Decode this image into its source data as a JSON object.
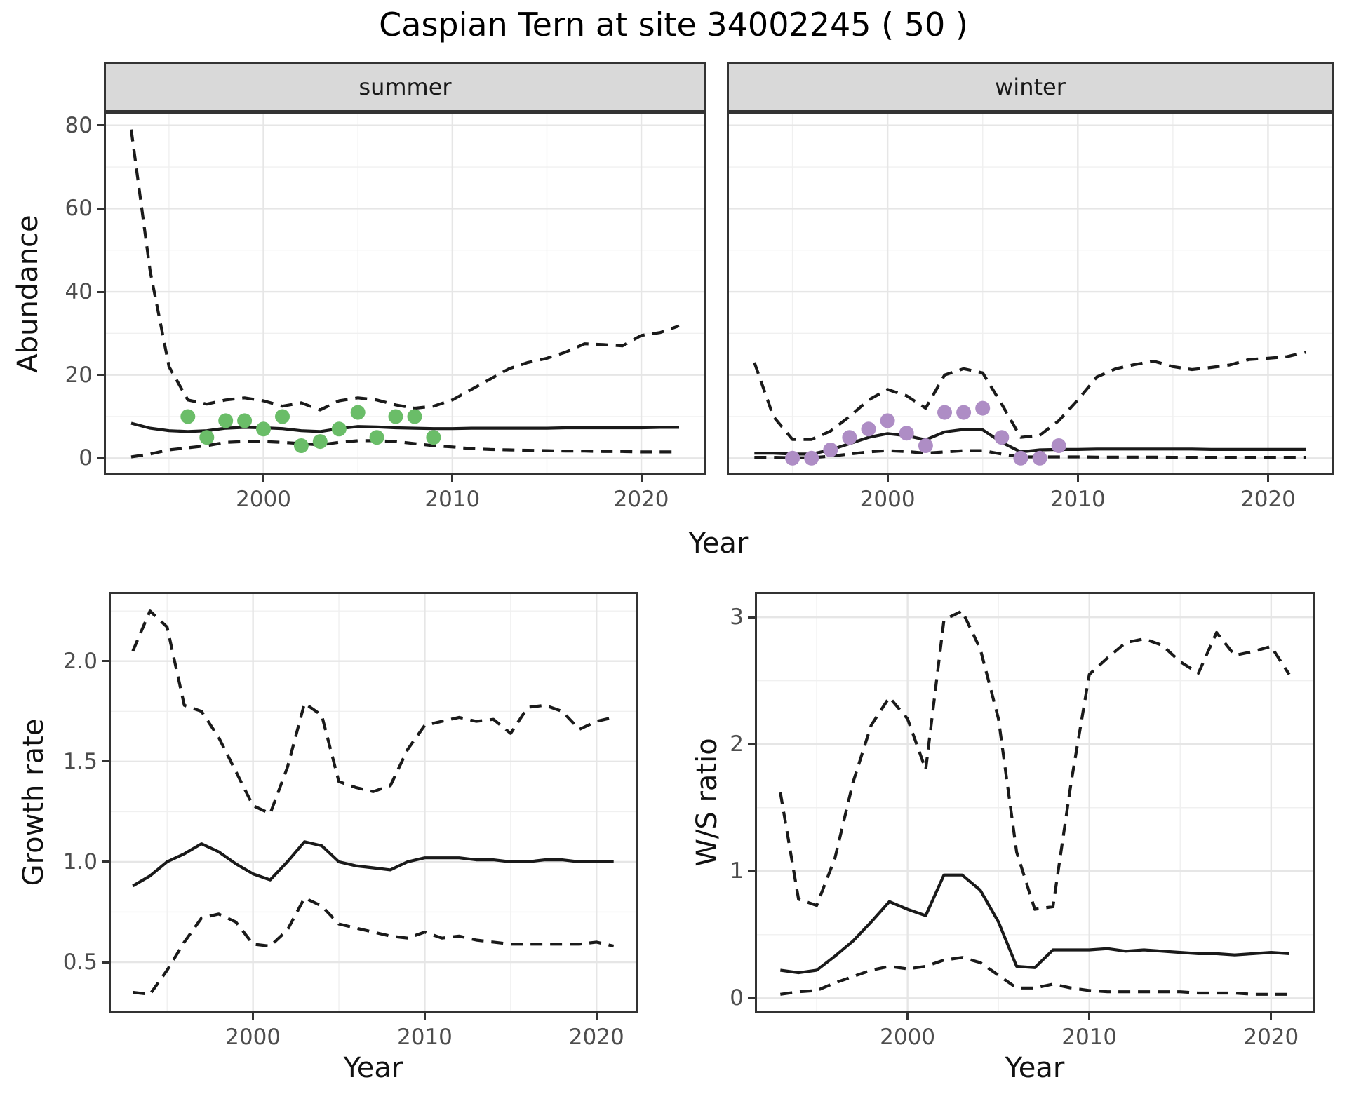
{
  "title": "Caspian Tern at site 34002245 ( 50 )",
  "labels": {
    "abundance": "Abundance",
    "year": "Year",
    "growth_rate": "Growth rate",
    "ws_ratio": "W/S ratio"
  },
  "colors": {
    "line": "#1a1a1a",
    "summer_points": "#6abd68",
    "winter_points": "#ae8dc5",
    "strip_fill": "#d9d9d9",
    "panel_border": "#333333",
    "grid_major": "#e6e6e6",
    "grid_minor": "#f0f0f0",
    "tick_text": "#4d4d4d"
  },
  "chart_data": [
    {
      "id": "summer",
      "type": "line",
      "facet_label": "summer",
      "xlabel": "Year",
      "ylabel": "Abundance",
      "xlim": [
        1991.55,
        2023.45
      ],
      "ylim": [
        -4.16,
        83.16
      ],
      "x_ticks": [
        2000,
        2010,
        2020
      ],
      "x_tick_labels": [
        "2000",
        "2010",
        "2020"
      ],
      "x_minor": [
        1995,
        2005,
        2015
      ],
      "y_ticks": [
        0,
        20,
        40,
        60,
        80
      ],
      "y_tick_labels": [
        "0",
        "20",
        "40",
        "60",
        "80"
      ],
      "y_minor": [
        10,
        30,
        50,
        70
      ],
      "show_y_labels": true,
      "x": [
        1993,
        1994,
        1995,
        1996,
        1997,
        1998,
        1999,
        2000,
        2001,
        2002,
        2003,
        2004,
        2005,
        2006,
        2007,
        2008,
        2009,
        2010,
        2011,
        2012,
        2013,
        2014,
        2015,
        2016,
        2017,
        2018,
        2019,
        2020,
        2021,
        2022
      ],
      "series": [
        {
          "name": "median fit",
          "role": "fit",
          "style": "solid",
          "values": [
            8.4,
            7.2,
            6.6,
            6.4,
            6.6,
            7.2,
            7.4,
            7.3,
            7.1,
            6.6,
            6.4,
            7.1,
            7.6,
            7.5,
            7.3,
            7.2,
            7.1,
            7.1,
            7.2,
            7.2,
            7.2,
            7.2,
            7.2,
            7.3,
            7.3,
            7.3,
            7.3,
            7.3,
            7.4,
            7.4
          ]
        },
        {
          "name": "upper CI",
          "role": "upper",
          "style": "dashed",
          "values": [
            79,
            45,
            22,
            14,
            13,
            14,
            14.5,
            13.8,
            12.5,
            13.3,
            11.6,
            13.8,
            14.5,
            14,
            12.8,
            12,
            12.5,
            14,
            16.5,
            19,
            21.5,
            23,
            24,
            25.5,
            27.5,
            27.3,
            27,
            29.5,
            30.2,
            31.8
          ]
        },
        {
          "name": "lower CI",
          "role": "lower",
          "style": "dashed",
          "values": [
            0.3,
            1,
            2,
            2.5,
            3,
            3.8,
            4,
            4,
            3.8,
            3.5,
            3.2,
            3.8,
            4.2,
            4.2,
            4,
            3.5,
            3,
            2.7,
            2.3,
            2.1,
            2,
            1.9,
            1.8,
            1.7,
            1.7,
            1.6,
            1.6,
            1.5,
            1.5,
            1.5
          ]
        }
      ],
      "points": {
        "name": "observed abundance (summer)",
        "color": "#6abd68",
        "x": [
          1996,
          1997,
          1998,
          1999,
          2000,
          2001,
          2002,
          2003,
          2004,
          2005,
          2006,
          2007,
          2008,
          2009
        ],
        "y": [
          10,
          5,
          9,
          9,
          7,
          10,
          3,
          4,
          7,
          11,
          5,
          10,
          10,
          5
        ]
      }
    },
    {
      "id": "winter",
      "type": "line",
      "facet_label": "winter",
      "xlabel": "Year",
      "ylabel": "Abundance",
      "xlim": [
        1991.55,
        2023.45
      ],
      "ylim": [
        -4.16,
        83.16
      ],
      "x_ticks": [
        2000,
        2010,
        2020
      ],
      "x_tick_labels": [
        "2000",
        "2010",
        "2020"
      ],
      "x_minor": [
        1995,
        2005,
        2015
      ],
      "y_ticks": [
        0,
        20,
        40,
        60,
        80
      ],
      "y_tick_labels": [
        "0",
        "20",
        "40",
        "60",
        "80"
      ],
      "y_minor": [
        10,
        30,
        50,
        70
      ],
      "show_y_labels": false,
      "x": [
        1993,
        1994,
        1995,
        1996,
        1997,
        1998,
        1999,
        2000,
        2001,
        2002,
        2003,
        2004,
        2005,
        2006,
        2007,
        2008,
        2009,
        2010,
        2011,
        2012,
        2013,
        2014,
        2015,
        2016,
        2017,
        2018,
        2019,
        2020,
        2021,
        2022
      ],
      "series": [
        {
          "name": "median fit",
          "role": "fit",
          "style": "solid",
          "values": [
            1.2,
            1.2,
            1.0,
            1.0,
            2.0,
            3.5,
            5.0,
            5.9,
            5.4,
            4.4,
            6.3,
            6.9,
            6.8,
            3.8,
            1.5,
            2.0,
            2.1,
            2.1,
            2.2,
            2.2,
            2.2,
            2.2,
            2.2,
            2.2,
            2.1,
            2.1,
            2.1,
            2.1,
            2.1,
            2.1
          ]
        },
        {
          "name": "upper CI",
          "role": "upper",
          "style": "dashed",
          "values": [
            23,
            10,
            4.5,
            4.5,
            6.5,
            10,
            14,
            16.5,
            15,
            12,
            20,
            21.5,
            20.5,
            13,
            5,
            5.5,
            9,
            14,
            19.5,
            21.5,
            22.5,
            23.3,
            22,
            21.3,
            21.8,
            22.4,
            23.7,
            24,
            24.4,
            25.5
          ]
        },
        {
          "name": "lower CI",
          "role": "lower",
          "style": "dashed",
          "values": [
            0.2,
            0.2,
            0.1,
            0.1,
            0.5,
            1.0,
            1.5,
            1.8,
            1.6,
            1.2,
            1.5,
            1.8,
            1.8,
            1.0,
            0.3,
            0.3,
            0.3,
            0.3,
            0.25,
            0.25,
            0.25,
            0.25,
            0.2,
            0.2,
            0.2,
            0.2,
            0.2,
            0.2,
            0.2,
            0.2
          ]
        }
      ],
      "points": {
        "name": "observed abundance (winter)",
        "color": "#ae8dc5",
        "x": [
          1995,
          1996,
          1997,
          1998,
          1999,
          2000,
          2001,
          2002,
          2003,
          2004,
          2005,
          2006,
          2007,
          2008,
          2009
        ],
        "y": [
          0,
          0,
          2,
          5,
          7,
          9,
          6,
          3,
          11,
          11,
          12,
          5,
          0,
          0,
          3
        ]
      }
    },
    {
      "id": "growth",
      "type": "line",
      "facet_label": "",
      "xlabel": "Year",
      "ylabel": "Growth rate",
      "xlim": [
        1991.6,
        2022.4
      ],
      "ylim": [
        0.245,
        2.345
      ],
      "x_ticks": [
        2000,
        2010,
        2020
      ],
      "x_tick_labels": [
        "2000",
        "2010",
        "2020"
      ],
      "x_minor": [
        1995,
        2005,
        2015
      ],
      "y_ticks": [
        0.5,
        1.0,
        1.5,
        2.0
      ],
      "y_tick_labels": [
        "0.5",
        "1.0",
        "1.5",
        "2.0"
      ],
      "y_minor": [
        0.25,
        0.75,
        1.25,
        1.75,
        2.25
      ],
      "show_y_labels": true,
      "x": [
        1993,
        1994,
        1995,
        1996,
        1997,
        1998,
        1999,
        2000,
        2001,
        2002,
        2003,
        2004,
        2005,
        2006,
        2007,
        2008,
        2009,
        2010,
        2011,
        2012,
        2013,
        2014,
        2015,
        2016,
        2017,
        2018,
        2019,
        2020,
        2021
      ],
      "series": [
        {
          "name": "median fit",
          "role": "fit",
          "style": "solid",
          "values": [
            0.88,
            0.93,
            1.0,
            1.04,
            1.09,
            1.05,
            0.99,
            0.94,
            0.91,
            1.0,
            1.1,
            1.08,
            1.0,
            0.98,
            0.97,
            0.96,
            1.0,
            1.02,
            1.02,
            1.02,
            1.01,
            1.01,
            1.0,
            1.0,
            1.01,
            1.01,
            1.0,
            1.0,
            1.0
          ]
        },
        {
          "name": "upper CI",
          "role": "upper",
          "style": "dashed",
          "values": [
            2.05,
            2.25,
            2.17,
            1.78,
            1.75,
            1.62,
            1.45,
            1.28,
            1.24,
            1.47,
            1.79,
            1.73,
            1.4,
            1.37,
            1.35,
            1.38,
            1.56,
            1.68,
            1.7,
            1.72,
            1.7,
            1.71,
            1.64,
            1.77,
            1.78,
            1.75,
            1.66,
            1.7,
            1.72
          ]
        },
        {
          "name": "lower CI",
          "role": "lower",
          "style": "dashed",
          "values": [
            0.35,
            0.34,
            0.46,
            0.6,
            0.72,
            0.74,
            0.7,
            0.59,
            0.58,
            0.66,
            0.82,
            0.78,
            0.69,
            0.67,
            0.65,
            0.63,
            0.62,
            0.65,
            0.62,
            0.63,
            0.61,
            0.6,
            0.59,
            0.59,
            0.59,
            0.59,
            0.59,
            0.6,
            0.58
          ]
        }
      ],
      "points": null
    },
    {
      "id": "ws",
      "type": "line",
      "facet_label": "",
      "xlabel": "Year",
      "ylabel": "W/S ratio",
      "xlim": [
        1991.6,
        2022.4
      ],
      "ylim": [
        -0.12,
        3.2
      ],
      "x_ticks": [
        2000,
        2010,
        2020
      ],
      "x_tick_labels": [
        "2000",
        "2010",
        "2020"
      ],
      "x_minor": [
        1995,
        2005,
        2015
      ],
      "y_ticks": [
        0,
        1,
        2,
        3
      ],
      "y_tick_labels": [
        "0",
        "1",
        "2",
        "3"
      ],
      "y_minor": [
        0.5,
        1.5,
        2.5
      ],
      "show_y_labels": true,
      "x": [
        1993,
        1994,
        1995,
        1996,
        1997,
        1998,
        1999,
        2000,
        2001,
        2002,
        2003,
        2004,
        2005,
        2006,
        2007,
        2008,
        2009,
        2010,
        2011,
        2012,
        2013,
        2014,
        2015,
        2016,
        2017,
        2018,
        2019,
        2020,
        2021
      ],
      "series": [
        {
          "name": "median fit",
          "role": "fit",
          "style": "solid",
          "values": [
            0.22,
            0.2,
            0.22,
            0.33,
            0.45,
            0.6,
            0.76,
            0.7,
            0.65,
            0.97,
            0.97,
            0.85,
            0.6,
            0.25,
            0.24,
            0.38,
            0.38,
            0.38,
            0.39,
            0.37,
            0.38,
            0.37,
            0.36,
            0.35,
            0.35,
            0.34,
            0.35,
            0.36,
            0.35
          ]
        },
        {
          "name": "upper CI",
          "role": "upper",
          "style": "dashed",
          "values": [
            1.62,
            0.78,
            0.73,
            1.1,
            1.7,
            2.15,
            2.37,
            2.2,
            1.8,
            2.98,
            3.05,
            2.75,
            2.2,
            1.15,
            0.7,
            0.72,
            1.7,
            2.55,
            2.68,
            2.8,
            2.83,
            2.78,
            2.65,
            2.56,
            2.88,
            2.7,
            2.73,
            2.77,
            2.55
          ]
        },
        {
          "name": "lower CI",
          "role": "lower",
          "style": "dashed",
          "values": [
            0.03,
            0.05,
            0.06,
            0.12,
            0.17,
            0.22,
            0.25,
            0.23,
            0.25,
            0.3,
            0.32,
            0.28,
            0.18,
            0.08,
            0.08,
            0.11,
            0.08,
            0.06,
            0.05,
            0.05,
            0.05,
            0.05,
            0.05,
            0.04,
            0.04,
            0.04,
            0.03,
            0.03,
            0.03
          ]
        }
      ],
      "points": null
    }
  ]
}
